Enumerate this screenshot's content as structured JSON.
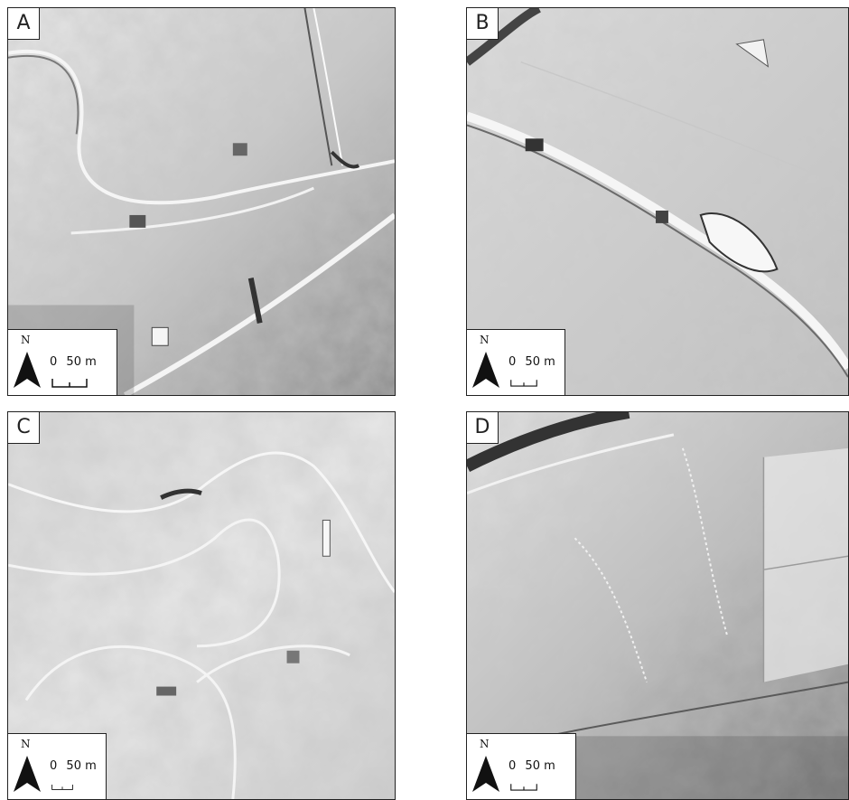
{
  "panels": [
    {
      "label": "A",
      "north": "N",
      "scale_zero": "0",
      "scale_end": "50 m"
    },
    {
      "label": "B",
      "north": "N",
      "scale_zero": "0",
      "scale_end": "50 m"
    },
    {
      "label": "C",
      "north": "N",
      "scale_zero": "0",
      "scale_end": "50 m"
    },
    {
      "label": "D",
      "north": "N",
      "scale_zero": "0",
      "scale_end": "50 m"
    }
  ],
  "icons": {
    "north": "north-arrow-icon",
    "scale": "scale-bar-icon"
  }
}
